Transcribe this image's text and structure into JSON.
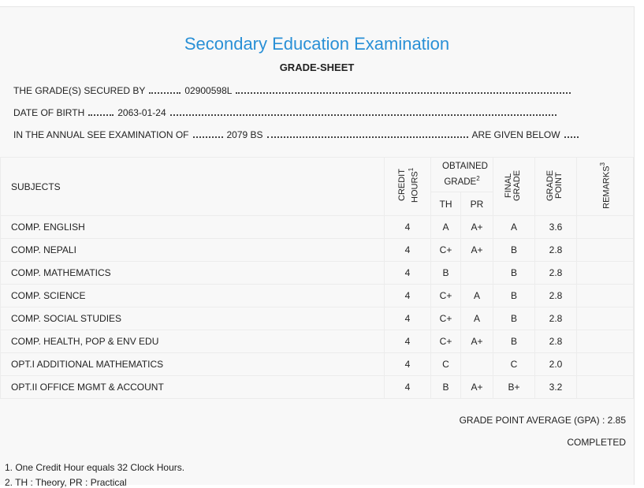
{
  "header": {
    "title": "Secondary Education Examination",
    "subtitle": "GRADE-SHEET"
  },
  "details": [
    {
      "label": "THE GRADE(S) SECURED BY",
      "value": "02900598L"
    },
    {
      "label": "DATE OF BIRTH",
      "value": "2063-01-24"
    },
    {
      "label": "IN THE ANNUAL SEE EXAMINATION OF",
      "value": "2079 BS",
      "suffix": "ARE GIVEN BELOW"
    }
  ],
  "table": {
    "headers": {
      "subjects": "SUBJECTS",
      "credit_hours": {
        "text": "CREDIT HOURS",
        "note": "1"
      },
      "obtained_grade": {
        "text": "OBTAINED GRADE",
        "note": "2"
      },
      "th": "TH",
      "pr": "PR",
      "final_grade": "FINAL GRADE",
      "grade_point": "GRADE POINT",
      "remarks": {
        "text": "REMARKS",
        "note": "3"
      }
    },
    "rows": [
      [
        "COMP. ENGLISH",
        "4",
        "A",
        "A+",
        "A",
        "3.6"
      ],
      [
        "COMP. NEPALI",
        "4",
        "C+",
        "A+",
        "B",
        "2.8"
      ],
      [
        "COMP. MATHEMATICS",
        "4",
        "B",
        null,
        "B",
        "2.8"
      ],
      [
        "COMP. SCIENCE",
        "4",
        "C+",
        "A",
        "B",
        "2.8"
      ],
      [
        "COMP. SOCIAL STUDIES",
        "4",
        "C+",
        "A",
        "B",
        "2.8"
      ],
      [
        "COMP. HEALTH, POP & ENV EDU",
        "4",
        "C+",
        "A+",
        "B",
        "2.8"
      ],
      [
        "OPT.I ADDITIONAL MATHEMATICS",
        "4",
        "C",
        null,
        "C",
        "2.0"
      ],
      [
        "OPT.II OFFICE MGMT & ACCOUNT",
        "4",
        "B",
        "A+",
        "B+",
        "3.2"
      ]
    ]
  },
  "summary": {
    "gpa_label": "GRADE POINT AVERAGE (GPA) :",
    "gpa": "2.85",
    "status": "COMPLETED"
  },
  "footnotes": [
    "1. One Credit Hour equals 32 Clock Hours.",
    "2. TH : Theory, PR : Practical"
  ]
}
